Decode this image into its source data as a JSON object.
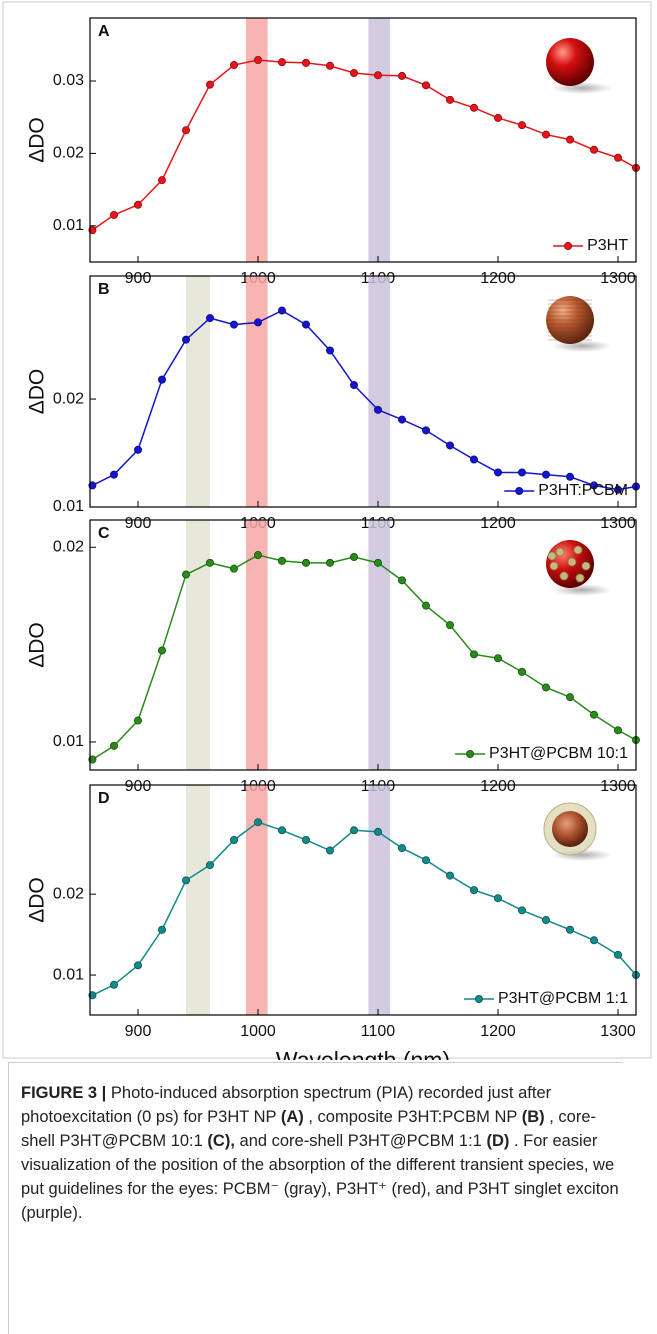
{
  "chart_data": [
    {
      "type": "line",
      "label": "A",
      "ylabel": "ΔDO",
      "legend": "lower right",
      "x": [
        862,
        880,
        900,
        920,
        940,
        960,
        980,
        1000,
        1020,
        1040,
        1060,
        1080,
        1100,
        1120,
        1140,
        1160,
        1180,
        1200,
        1220,
        1240,
        1260,
        1280,
        1300,
        1315
      ],
      "series": [
        {
          "name": "P3HT",
          "color": "#e8141a",
          "values": [
            0.0094,
            0.0115,
            0.0129,
            0.0163,
            0.0232,
            0.0295,
            0.0322,
            0.0329,
            0.0326,
            0.0325,
            0.0321,
            0.0311,
            0.0308,
            0.0307,
            0.0294,
            0.0274,
            0.0263,
            0.0249,
            0.0239,
            0.0226,
            0.0219,
            0.0205,
            0.0194,
            0.018
          ]
        }
      ],
      "bands": [
        {
          "xmin": 990,
          "xmax": 1008,
          "color": "#f7a6a6"
        },
        {
          "xmin": 1092,
          "xmax": 1110,
          "color": "#cbc3dc"
        }
      ],
      "xlim": [
        860,
        1315
      ],
      "xticks": [
        900,
        1000,
        1100,
        1200,
        1300
      ],
      "ylim": [
        0.005,
        0.0387
      ],
      "yticks": [
        0.01,
        0.02,
        0.03
      ]
    },
    {
      "type": "line",
      "label": "B",
      "ylabel": "ΔDO",
      "legend": "lower right",
      "x": [
        862,
        880,
        900,
        920,
        940,
        960,
        980,
        1000,
        1020,
        1040,
        1060,
        1080,
        1100,
        1120,
        1140,
        1160,
        1180,
        1200,
        1220,
        1240,
        1260,
        1280,
        1300,
        1315
      ],
      "series": [
        {
          "name": "P3HT:PCBM",
          "color": "#1515d0",
          "values": [
            0.012,
            0.013,
            0.0153,
            0.0218,
            0.0255,
            0.0275,
            0.0269,
            0.0271,
            0.0282,
            0.0269,
            0.0245,
            0.0213,
            0.019,
            0.0181,
            0.0171,
            0.0157,
            0.0144,
            0.0132,
            0.0132,
            0.013,
            0.0128,
            0.012,
            0.0116,
            0.0119
          ]
        }
      ],
      "bands": [
        {
          "xmin": 940,
          "xmax": 960,
          "color": "#e4e4d4"
        },
        {
          "xmin": 990,
          "xmax": 1008,
          "color": "#f7a6a6"
        },
        {
          "xmin": 1092,
          "xmax": 1110,
          "color": "#cbc3dc"
        }
      ],
      "xlim": [
        860,
        1315
      ],
      "xticks": [
        900,
        1000,
        1100,
        1200,
        1300
      ],
      "ylim": [
        0.01,
        0.0314
      ],
      "yticks": [
        0.01,
        0.02
      ]
    },
    {
      "type": "line",
      "label": "C",
      "ylabel": "ΔDO",
      "legend": "lower right",
      "x": [
        862,
        880,
        900,
        920,
        940,
        960,
        980,
        1000,
        1020,
        1040,
        1060,
        1080,
        1100,
        1120,
        1140,
        1160,
        1180,
        1200,
        1220,
        1240,
        1260,
        1280,
        1300,
        1315
      ],
      "series": [
        {
          "name": "P3HT@PCBM 10:1",
          "color": "#2a8a1a",
          "values": [
            0.0091,
            0.0098,
            0.0111,
            0.0147,
            0.0186,
            0.0192,
            0.0189,
            0.0196,
            0.0193,
            0.0192,
            0.0192,
            0.0195,
            0.0192,
            0.0183,
            0.017,
            0.016,
            0.0145,
            0.0143,
            0.0136,
            0.0128,
            0.0123,
            0.0114,
            0.0106,
            0.0101
          ]
        }
      ],
      "bands": [
        {
          "xmin": 940,
          "xmax": 960,
          "color": "#e4e4d4"
        },
        {
          "xmin": 990,
          "xmax": 1008,
          "color": "#f7a6a6"
        },
        {
          "xmin": 1092,
          "xmax": 1110,
          "color": "#cbc3dc"
        }
      ],
      "xlim": [
        860,
        1315
      ],
      "xticks": [
        900,
        1000,
        1100,
        1200,
        1300
      ],
      "ylim": [
        0.00856,
        0.0214
      ],
      "yticks": [
        0.01,
        0.02
      ]
    },
    {
      "type": "line",
      "label": "D",
      "ylabel": "ΔDO",
      "legend": "lower right",
      "xlabel": "Wavelength (nm)",
      "x": [
        862,
        880,
        900,
        920,
        940,
        960,
        980,
        1000,
        1020,
        1040,
        1060,
        1080,
        1100,
        1120,
        1140,
        1160,
        1180,
        1200,
        1220,
        1240,
        1260,
        1280,
        1300,
        1315
      ],
      "series": [
        {
          "name": "P3HT@PCBM 1:1",
          "color": "#148a8a",
          "values": [
            0.0075,
            0.0088,
            0.0112,
            0.0156,
            0.0217,
            0.0236,
            0.0267,
            0.0289,
            0.0279,
            0.0267,
            0.0254,
            0.0279,
            0.0277,
            0.0257,
            0.0242,
            0.0223,
            0.0205,
            0.0195,
            0.018,
            0.0168,
            0.0156,
            0.0143,
            0.0125,
            0.01
          ]
        }
      ],
      "bands": [
        {
          "xmin": 940,
          "xmax": 960,
          "color": "#e4e4d4"
        },
        {
          "xmin": 990,
          "xmax": 1008,
          "color": "#f7a6a6"
        },
        {
          "xmin": 1092,
          "xmax": 1110,
          "color": "#cbc3dc"
        }
      ],
      "xlim": [
        860,
        1315
      ],
      "xticks": [
        900,
        1000,
        1100,
        1200,
        1300
      ],
      "ylim": [
        0.00506,
        0.0335
      ],
      "yticks": [
        0.01,
        0.02
      ]
    }
  ],
  "caption": {
    "label": "FIGURE 3 |",
    "segments": [
      {
        "text": "Photo-induced absorption spectrum (PIA) recorded just after photoexcitation (0 ps) for P3HT NP",
        "bold": false
      },
      {
        "text": "(A)",
        "bold": true
      },
      {
        "text": ", composite P3HT:PCBM NP",
        "bold": false
      },
      {
        "text": "(B)",
        "bold": true
      },
      {
        "text": ", core-shell P3HT@PCBM 10:1",
        "bold": false
      },
      {
        "text": "(C),",
        "bold": true
      },
      {
        "text": "and core-shell P3HT@PCBM 1:1",
        "bold": false
      },
      {
        "text": "(D)",
        "bold": true
      },
      {
        "text": ". For easier visualization of the position of the absorption of the different transient species, we put guidelines for the eyes: PCBM⁻ (gray), P3HT⁺ (red), and P3HT singlet exciton (purple).",
        "bold": false
      }
    ]
  }
}
